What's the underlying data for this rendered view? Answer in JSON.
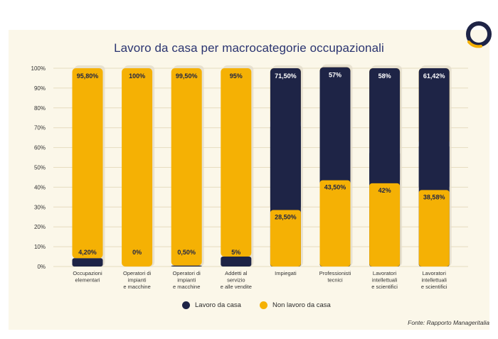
{
  "title": "Lavoro da casa per macrocategorie occupazionali",
  "source": "Fonte: Rapporto Manageritalia",
  "colors": {
    "lavoro": "#1e2446",
    "non_lavoro": "#f5b104",
    "grid": "#e6dcc0",
    "logo_ring": "#1e2446",
    "logo_accent": "#f5b104"
  },
  "legend": {
    "lavoro": "Lavoro da casa",
    "non_lavoro": "Non lavoro da casa"
  },
  "chart_data": {
    "type": "bar",
    "stacked": true,
    "title": "Lavoro da casa per macrocategorie occupazionali",
    "ylim": [
      0,
      100
    ],
    "yticks": [
      "0%",
      "10%",
      "20%",
      "30%",
      "40%",
      "50%",
      "60%",
      "70%",
      "80%",
      "90%",
      "100%"
    ],
    "categories": [
      [
        "Occupazioni",
        "elementari"
      ],
      [
        "Operatori di",
        "impianti",
        "e macchine"
      ],
      [
        "Operatori di",
        "impianti",
        "e macchine"
      ],
      [
        "Addetti al",
        "servizio",
        "e alle vendite"
      ],
      [
        "Impiegati"
      ],
      [
        "Professionisti",
        "tecnici"
      ],
      [
        "Lavoratori",
        "intellettuali",
        "e scientifici"
      ],
      [
        "Lavoratori",
        "intellettuali",
        "e scientifici"
      ]
    ],
    "series": [
      {
        "name": "Lavoro da casa",
        "values": [
          4.2,
          0,
          0.5,
          5,
          71.5,
          57,
          58,
          61.42
        ],
        "labels": [
          "4,20%",
          "0%",
          "0,50%",
          "5%",
          "71,50%",
          "57%",
          "58%",
          "61,42%"
        ]
      },
      {
        "name": "Non lavoro da casa",
        "values": [
          95.8,
          100,
          99.5,
          95,
          28.5,
          43.5,
          42,
          38.58
        ],
        "labels": [
          "95,80%",
          "100%",
          "99,50%",
          "95%",
          "28,50%",
          "43,50%",
          "42%",
          "38,58%"
        ]
      }
    ],
    "legend_position": "bottom-center"
  }
}
